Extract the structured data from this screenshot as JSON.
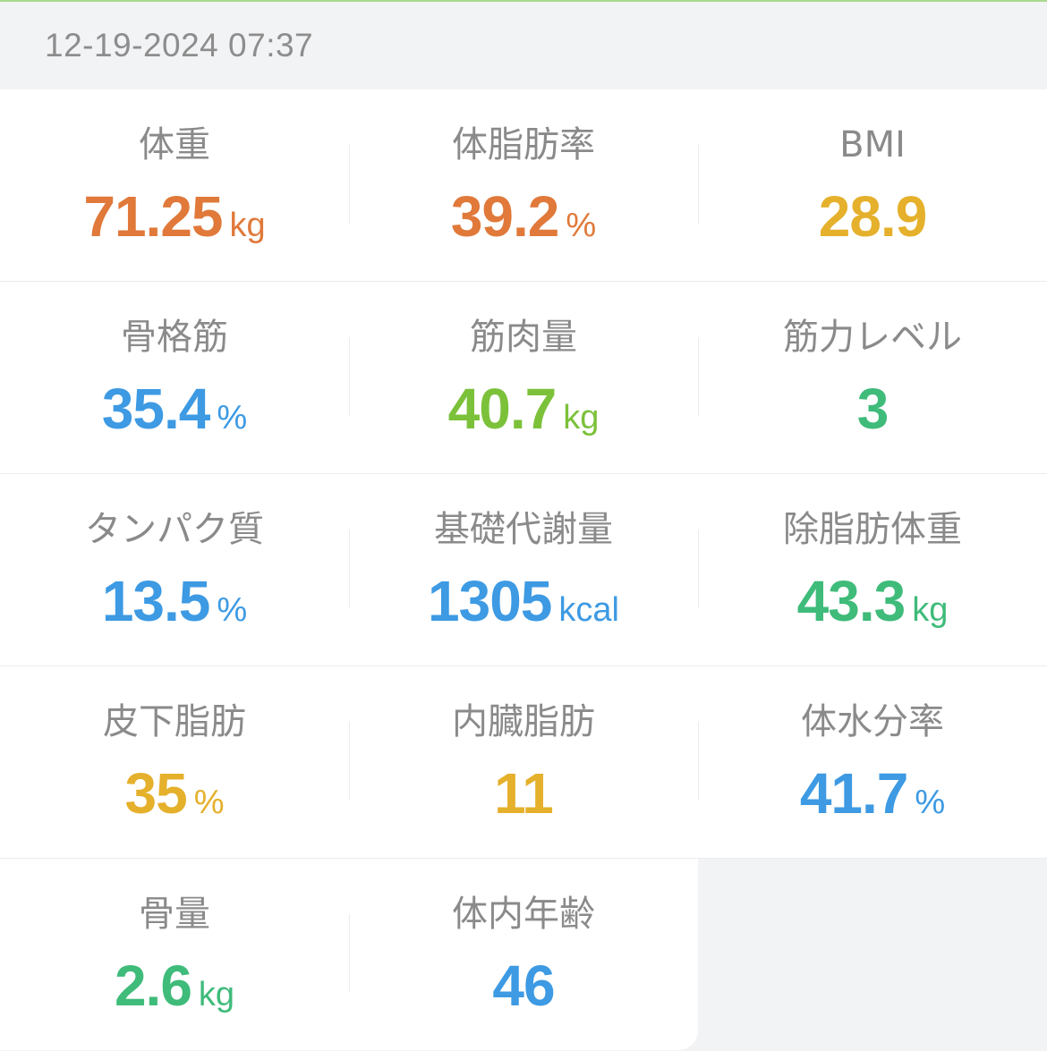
{
  "header": {
    "datetime": "12-19-2024 07:37"
  },
  "colors": {
    "orange": "#e0793a",
    "yellow": "#e5b02b",
    "blue": "#3d9ae3",
    "green_light": "#7cc13a",
    "green": "#3fbb7a"
  },
  "metrics": [
    {
      "label": "体重",
      "value": "71.25",
      "unit": "kg",
      "color": "#e0793a"
    },
    {
      "label": "体脂肪率",
      "value": "39.2",
      "unit": "%",
      "color": "#e0793a"
    },
    {
      "label": "BMI",
      "value": "28.9",
      "unit": "",
      "color": "#e5b02b"
    },
    {
      "label": "骨格筋",
      "value": "35.4",
      "unit": "%",
      "color": "#3d9ae3"
    },
    {
      "label": "筋肉量",
      "value": "40.7",
      "unit": "kg",
      "color": "#7cc13a"
    },
    {
      "label": "筋力レベル",
      "value": "3",
      "unit": "",
      "color": "#3fbb7a"
    },
    {
      "label": "タンパク質",
      "value": "13.5",
      "unit": "%",
      "color": "#3d9ae3"
    },
    {
      "label": "基礎代謝量",
      "value": "1305",
      "unit": "kcal",
      "color": "#3d9ae3"
    },
    {
      "label": "除脂肪体重",
      "value": "43.3",
      "unit": "kg",
      "color": "#3fbb7a"
    },
    {
      "label": "皮下脂肪",
      "value": "35",
      "unit": "%",
      "color": "#e5b02b"
    },
    {
      "label": "内臓脂肪",
      "value": "11",
      "unit": "",
      "color": "#e5b02b"
    },
    {
      "label": "体水分率",
      "value": "41.7",
      "unit": "%",
      "color": "#3d9ae3"
    },
    {
      "label": "骨量",
      "value": "2.6",
      "unit": "kg",
      "color": "#3fbb7a"
    },
    {
      "label": "体内年齢",
      "value": "46",
      "unit": "",
      "color": "#3d9ae3"
    }
  ]
}
